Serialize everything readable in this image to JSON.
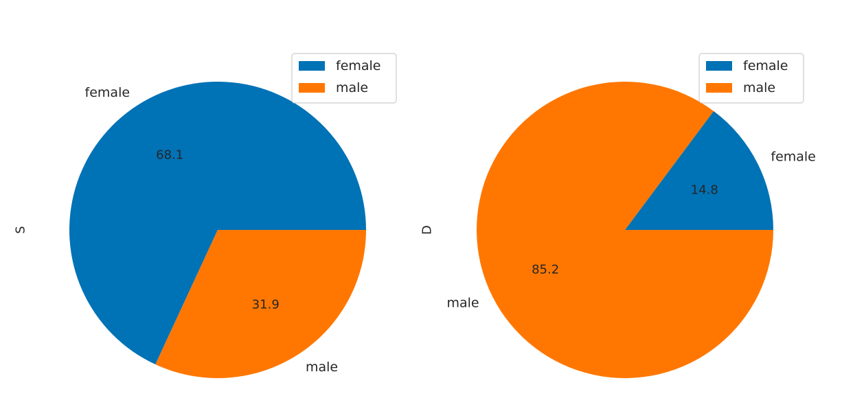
{
  "colors": {
    "female": "#0072b6",
    "male": "#ff7700",
    "legend_border": "#cccccc",
    "text": "#262626"
  },
  "chart_data": [
    {
      "type": "pie",
      "ylabel": "S",
      "labels": [
        "female",
        "male"
      ],
      "values": [
        68.1,
        31.9
      ],
      "autopct_labels": [
        "68.1",
        "31.9"
      ],
      "legend": [
        "female",
        "male"
      ],
      "legend_placement": "upper right"
    },
    {
      "type": "pie",
      "ylabel": "D",
      "labels": [
        "female",
        "male"
      ],
      "values": [
        14.8,
        85.2
      ],
      "autopct_labels": [
        "14.8",
        "85.2"
      ],
      "legend": [
        "female",
        "male"
      ],
      "legend_placement": "upper right"
    }
  ]
}
